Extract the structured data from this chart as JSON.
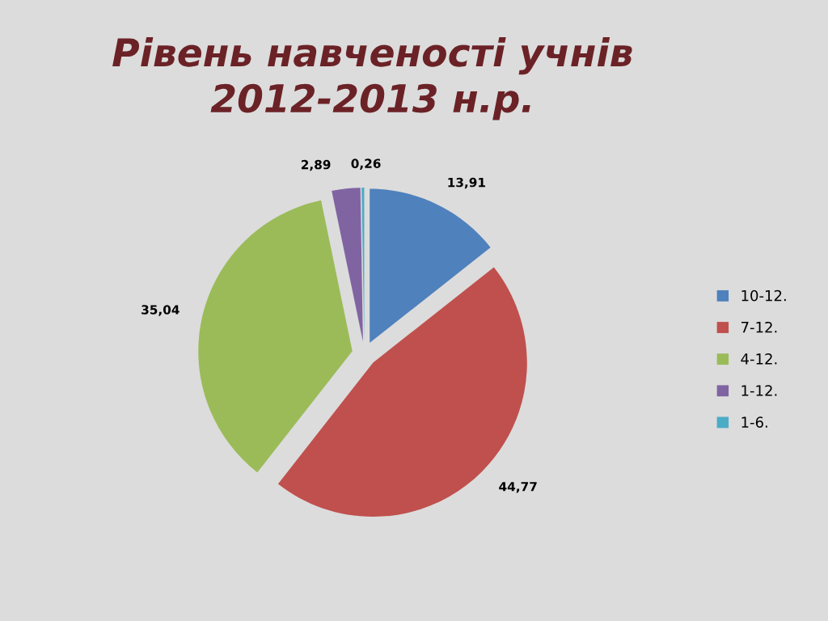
{
  "chart_data": {
    "type": "pie",
    "title": "Рівень навченості учнів\n2012-2013 н.р.",
    "categories": [
      "10-12.",
      "7-12.",
      "4-12.",
      "1-12.",
      "1-6."
    ],
    "values": [
      13.91,
      44.77,
      35.04,
      2.89,
      0.26
    ],
    "value_labels": [
      "13,91",
      "44,77",
      "35,04",
      "2,89",
      "0,26"
    ],
    "colors": [
      "#4f81bd",
      "#c0504d",
      "#9bbb59",
      "#8064a2",
      "#4bacc6"
    ],
    "legend": "right"
  }
}
